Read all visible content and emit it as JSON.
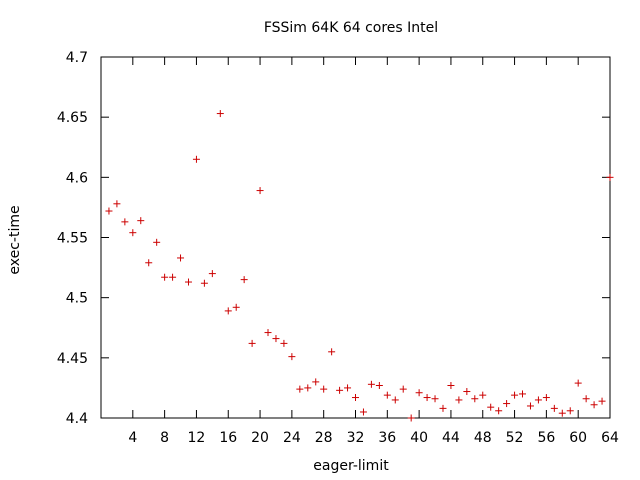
{
  "chart_data": {
    "type": "scatter",
    "title": "FSSim 64K 64 cores Intel",
    "xlabel": "eager-limit",
    "ylabel": "exec-time",
    "xlim": [
      0,
      64
    ],
    "ylim": [
      4.4,
      4.7
    ],
    "xticks": [
      4,
      8,
      12,
      16,
      20,
      24,
      28,
      32,
      36,
      40,
      44,
      48,
      52,
      56,
      60,
      64
    ],
    "yticks": [
      4.4,
      4.45,
      4.5,
      4.55,
      4.6,
      4.65,
      4.7
    ],
    "ytick_labels": [
      "4.4",
      "4.45",
      "4.5",
      "4.55",
      "4.6",
      "4.65",
      "4.7"
    ],
    "grid": false,
    "marker": "plus",
    "color": "#cc0000",
    "x": [
      1,
      2,
      3,
      4,
      5,
      6,
      7,
      8,
      9,
      10,
      11,
      12,
      13,
      14,
      15,
      16,
      17,
      18,
      19,
      20,
      21,
      22,
      23,
      24,
      25,
      26,
      27,
      28,
      29,
      30,
      31,
      32,
      33,
      34,
      35,
      36,
      37,
      38,
      39,
      40,
      41,
      42,
      43,
      44,
      45,
      46,
      47,
      48,
      49,
      50,
      51,
      52,
      53,
      54,
      55,
      56,
      57,
      58,
      59,
      60,
      61,
      62,
      63,
      64
    ],
    "y": [
      4.572,
      4.578,
      4.563,
      4.554,
      4.564,
      4.529,
      4.546,
      4.517,
      4.517,
      4.533,
      4.513,
      4.615,
      4.512,
      4.52,
      4.653,
      4.489,
      4.492,
      4.515,
      4.462,
      4.589,
      4.471,
      4.466,
      4.462,
      4.451,
      4.424,
      4.425,
      4.43,
      4.424,
      4.455,
      4.423,
      4.425,
      4.417,
      4.405,
      4.428,
      4.427,
      4.419,
      4.415,
      4.424,
      4.4,
      4.421,
      4.417,
      4.416,
      4.408,
      4.427,
      4.415,
      4.422,
      4.416,
      4.419,
      4.409,
      4.406,
      4.412,
      4.419,
      4.42,
      4.41,
      4.415,
      4.417,
      4.408,
      4.404,
      4.406,
      4.429,
      4.416,
      4.411,
      4.414,
      4.6
    ]
  }
}
